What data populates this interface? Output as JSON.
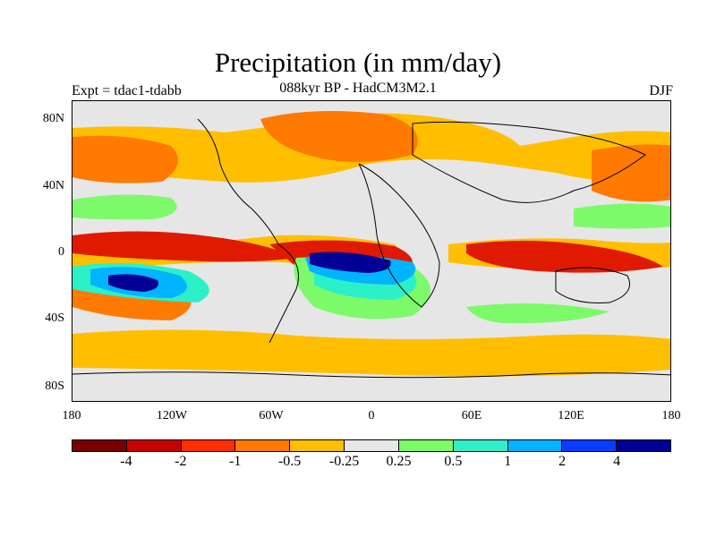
{
  "header": {
    "title": "Precipitation (in mm/day)",
    "subtitle": "088kyr BP - HadCM3M2.1",
    "left_label": "Expt = tdac1-tdabb",
    "right_label": "DJF"
  },
  "axes": {
    "y_ticks": [
      "80N",
      "40N",
      "0",
      "40S",
      "80S"
    ],
    "x_ticks": [
      "180",
      "120W",
      "60W",
      "0",
      "60E",
      "120E",
      "180"
    ]
  },
  "legend": {
    "colors": [
      "#7a0000",
      "#c80000",
      "#ff2d00",
      "#ff7a00",
      "#ffbf00",
      "#e6e6e6",
      "#7dfa6a",
      "#2cf0c8",
      "#00b4ff",
      "#0a3cff",
      "#000096"
    ],
    "labels": [
      "-4",
      "-2",
      "-1",
      "-0.5",
      "-0.25",
      "0.25",
      "0.5",
      "1",
      "2",
      "4"
    ]
  },
  "map": {
    "background_color": "#e6e6e6",
    "coastline_color": "#000000"
  }
}
